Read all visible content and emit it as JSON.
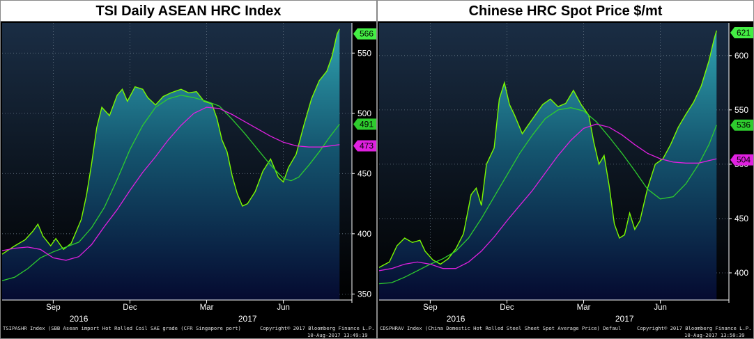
{
  "chart_data": [
    {
      "type": "area",
      "title": "TSI Daily ASEAN HRC Index",
      "ylim": [
        345,
        575
      ],
      "y_ticks": [
        350,
        400,
        450,
        500,
        550
      ],
      "x_ticks": [
        {
          "label": "Sep",
          "t": 2.0
        },
        {
          "label": "Dec",
          "t": 5.0
        },
        {
          "label": "Mar",
          "t": 8.0
        },
        {
          "label": "Jun",
          "t": 11.0
        }
      ],
      "year_labels": [
        {
          "label": "2016",
          "t": 3.0
        },
        {
          "label": "2017",
          "t": 9.6
        }
      ],
      "t_range": [
        0,
        13.3
      ],
      "series": [
        {
          "name": "TSIPASHR Index",
          "role": "price",
          "color": "#7CFC00",
          "last": "566",
          "points": [
            [
              0,
              383
            ],
            [
              0.5,
              390
            ],
            [
              0.9,
              395
            ],
            [
              1.2,
              402
            ],
            [
              1.4,
              408
            ],
            [
              1.6,
              398
            ],
            [
              1.9,
              390
            ],
            [
              2.1,
              396
            ],
            [
              2.4,
              387
            ],
            [
              2.7,
              392
            ],
            [
              3.1,
              412
            ],
            [
              3.3,
              432
            ],
            [
              3.5,
              458
            ],
            [
              3.7,
              488
            ],
            [
              3.9,
              505
            ],
            [
              4.2,
              498
            ],
            [
              4.5,
              515
            ],
            [
              4.7,
              520
            ],
            [
              4.9,
              510
            ],
            [
              5.2,
              522
            ],
            [
              5.5,
              520
            ],
            [
              5.7,
              513
            ],
            [
              6.0,
              507
            ],
            [
              6.3,
              514
            ],
            [
              6.6,
              517
            ],
            [
              7.0,
              520
            ],
            [
              7.3,
              517
            ],
            [
              7.6,
              518
            ],
            [
              7.9,
              510
            ],
            [
              8.2,
              508
            ],
            [
              8.4,
              496
            ],
            [
              8.6,
              478
            ],
            [
              8.8,
              468
            ],
            [
              9.0,
              448
            ],
            [
              9.2,
              433
            ],
            [
              9.4,
              423
            ],
            [
              9.6,
              425
            ],
            [
              9.9,
              435
            ],
            [
              10.2,
              452
            ],
            [
              10.5,
              462
            ],
            [
              10.8,
              447
            ],
            [
              11.0,
              443
            ],
            [
              11.2,
              455
            ],
            [
              11.5,
              466
            ],
            [
              11.8,
              490
            ],
            [
              12.1,
              512
            ],
            [
              12.4,
              527
            ],
            [
              12.7,
              535
            ],
            [
              12.9,
              547
            ],
            [
              13.1,
              566
            ],
            [
              13.2,
              570
            ]
          ]
        },
        {
          "name": "Moving average (short)",
          "role": "ma",
          "color": "#2ecc2e",
          "last": "491",
          "points": [
            [
              0,
              361
            ],
            [
              0.5,
              364
            ],
            [
              1.0,
              371
            ],
            [
              1.5,
              380
            ],
            [
              2.0,
              385
            ],
            [
              2.5,
              389
            ],
            [
              3.0,
              393
            ],
            [
              3.5,
              405
            ],
            [
              4.0,
              422
            ],
            [
              4.5,
              445
            ],
            [
              5.0,
              470
            ],
            [
              5.5,
              490
            ],
            [
              6.0,
              505
            ],
            [
              6.5,
              512
            ],
            [
              7.0,
              515
            ],
            [
              7.5,
              513
            ],
            [
              8.0,
              510
            ],
            [
              8.5,
              506
            ],
            [
              9.0,
              495
            ],
            [
              9.5,
              483
            ],
            [
              10.0,
              470
            ],
            [
              10.5,
              457
            ],
            [
              11.0,
              446
            ],
            [
              11.3,
              444
            ],
            [
              11.6,
              447
            ],
            [
              12.0,
              457
            ],
            [
              12.4,
              468
            ],
            [
              12.8,
              480
            ],
            [
              13.2,
              491
            ]
          ]
        },
        {
          "name": "Moving average (long)",
          "role": "ma",
          "color": "#e020e0",
          "last": "473",
          "points": [
            [
              0,
              386
            ],
            [
              0.5,
              388
            ],
            [
              1.0,
              389
            ],
            [
              1.5,
              387
            ],
            [
              2.0,
              380
            ],
            [
              2.5,
              378
            ],
            [
              3.0,
              381
            ],
            [
              3.5,
              391
            ],
            [
              4.0,
              406
            ],
            [
              4.5,
              420
            ],
            [
              5.0,
              436
            ],
            [
              5.5,
              451
            ],
            [
              6.0,
              464
            ],
            [
              6.5,
              478
            ],
            [
              7.0,
              490
            ],
            [
              7.5,
              500
            ],
            [
              8.0,
              505
            ],
            [
              8.5,
              504
            ],
            [
              9.0,
              499
            ],
            [
              9.5,
              493
            ],
            [
              10.0,
              487
            ],
            [
              10.5,
              481
            ],
            [
              11.0,
              476
            ],
            [
              11.5,
              473
            ],
            [
              12.0,
              472
            ],
            [
              12.5,
              472
            ],
            [
              13.2,
              474
            ]
          ]
        }
      ],
      "footer_left": "TSIPASHR Index (SBB Asean import Hot Rolled Coil SAE grade (CFR Singapore port)",
      "footer_right_top": "Copyright© 2017 Bloomberg Finance L.P.",
      "footer_right_bottom": "10-Aug-2017 13:49:19"
    },
    {
      "type": "area",
      "title": "Chinese HRC Spot Price $/mt",
      "ylim": [
        375,
        630
      ],
      "y_ticks": [
        400,
        450,
        500,
        550,
        600
      ],
      "x_ticks": [
        {
          "label": "Sep",
          "t": 2.0
        },
        {
          "label": "Dec",
          "t": 5.0
        },
        {
          "label": "Mar",
          "t": 8.0
        },
        {
          "label": "Jun",
          "t": 11.0
        }
      ],
      "year_labels": [
        {
          "label": "2016",
          "t": 3.0
        },
        {
          "label": "2017",
          "t": 9.6
        }
      ],
      "t_range": [
        0,
        13.3
      ],
      "series": [
        {
          "name": "CDSPHRAV Index",
          "role": "price",
          "color": "#7CFC00",
          "last": "621",
          "points": [
            [
              0,
              405
            ],
            [
              0.4,
              410
            ],
            [
              0.7,
              425
            ],
            [
              1.0,
              432
            ],
            [
              1.3,
              428
            ],
            [
              1.6,
              430
            ],
            [
              1.8,
              420
            ],
            [
              2.1,
              412
            ],
            [
              2.4,
              408
            ],
            [
              2.7,
              413
            ],
            [
              3.0,
              422
            ],
            [
              3.3,
              436
            ],
            [
              3.6,
              472
            ],
            [
              3.8,
              478
            ],
            [
              4.0,
              462
            ],
            [
              4.2,
              500
            ],
            [
              4.5,
              515
            ],
            [
              4.7,
              560
            ],
            [
              4.9,
              575
            ],
            [
              5.1,
              555
            ],
            [
              5.3,
              545
            ],
            [
              5.6,
              528
            ],
            [
              5.8,
              535
            ],
            [
              6.1,
              545
            ],
            [
              6.4,
              555
            ],
            [
              6.7,
              560
            ],
            [
              7.0,
              553
            ],
            [
              7.3,
              556
            ],
            [
              7.6,
              568
            ],
            [
              7.9,
              555
            ],
            [
              8.2,
              545
            ],
            [
              8.4,
              520
            ],
            [
              8.6,
              500
            ],
            [
              8.8,
              508
            ],
            [
              9.0,
              480
            ],
            [
              9.2,
              445
            ],
            [
              9.4,
              432
            ],
            [
              9.6,
              435
            ],
            [
              9.8,
              455
            ],
            [
              10.0,
              440
            ],
            [
              10.2,
              448
            ],
            [
              10.5,
              478
            ],
            [
              10.8,
              500
            ],
            [
              11.1,
              505
            ],
            [
              11.4,
              518
            ],
            [
              11.7,
              534
            ],
            [
              12.0,
              546
            ],
            [
              12.3,
              557
            ],
            [
              12.6,
              572
            ],
            [
              12.9,
              595
            ],
            [
              13.1,
              615
            ],
            [
              13.2,
              623
            ]
          ]
        },
        {
          "name": "Moving average (short)",
          "role": "ma",
          "color": "#2ecc2e",
          "last": "536",
          "points": [
            [
              0,
              390
            ],
            [
              0.5,
              391
            ],
            [
              1.0,
              396
            ],
            [
              1.5,
              402
            ],
            [
              2.0,
              408
            ],
            [
              2.5,
              413
            ],
            [
              3.0,
              420
            ],
            [
              3.5,
              432
            ],
            [
              4.0,
              450
            ],
            [
              4.5,
              470
            ],
            [
              5.0,
              490
            ],
            [
              5.5,
              510
            ],
            [
              6.0,
              527
            ],
            [
              6.5,
              542
            ],
            [
              7.0,
              550
            ],
            [
              7.5,
              552
            ],
            [
              8.0,
              549
            ],
            [
              8.5,
              539
            ],
            [
              9.0,
              525
            ],
            [
              9.5,
              510
            ],
            [
              10.0,
              494
            ],
            [
              10.5,
              477
            ],
            [
              11.0,
              468
            ],
            [
              11.5,
              470
            ],
            [
              12.0,
              482
            ],
            [
              12.5,
              500
            ],
            [
              12.9,
              518
            ],
            [
              13.2,
              536
            ]
          ]
        },
        {
          "name": "Moving average (long)",
          "role": "ma",
          "color": "#e020e0",
          "last": "504",
          "points": [
            [
              0,
              402
            ],
            [
              0.5,
              404
            ],
            [
              1.0,
              408
            ],
            [
              1.5,
              410
            ],
            [
              2.0,
              408
            ],
            [
              2.5,
              404
            ],
            [
              3.0,
              404
            ],
            [
              3.5,
              410
            ],
            [
              4.0,
              420
            ],
            [
              4.5,
              433
            ],
            [
              5.0,
              448
            ],
            [
              5.5,
              462
            ],
            [
              6.0,
              476
            ],
            [
              6.5,
              492
            ],
            [
              7.0,
              508
            ],
            [
              7.5,
              522
            ],
            [
              8.0,
              533
            ],
            [
              8.5,
              537
            ],
            [
              9.0,
              534
            ],
            [
              9.5,
              527
            ],
            [
              10.0,
              518
            ],
            [
              10.5,
              510
            ],
            [
              11.0,
              505
            ],
            [
              11.5,
              502
            ],
            [
              12.0,
              501
            ],
            [
              12.5,
              501
            ],
            [
              13.2,
              505
            ]
          ]
        }
      ],
      "footer_left": "CDSPHRAV Index (China Domestic Hot Rolled Steel Sheet Spot Average Price) Defaul",
      "footer_right_top": "Copyright© 2017 Bloomberg Finance L.P.",
      "footer_right_bottom": "10-Aug-2017 13:50:39"
    }
  ]
}
